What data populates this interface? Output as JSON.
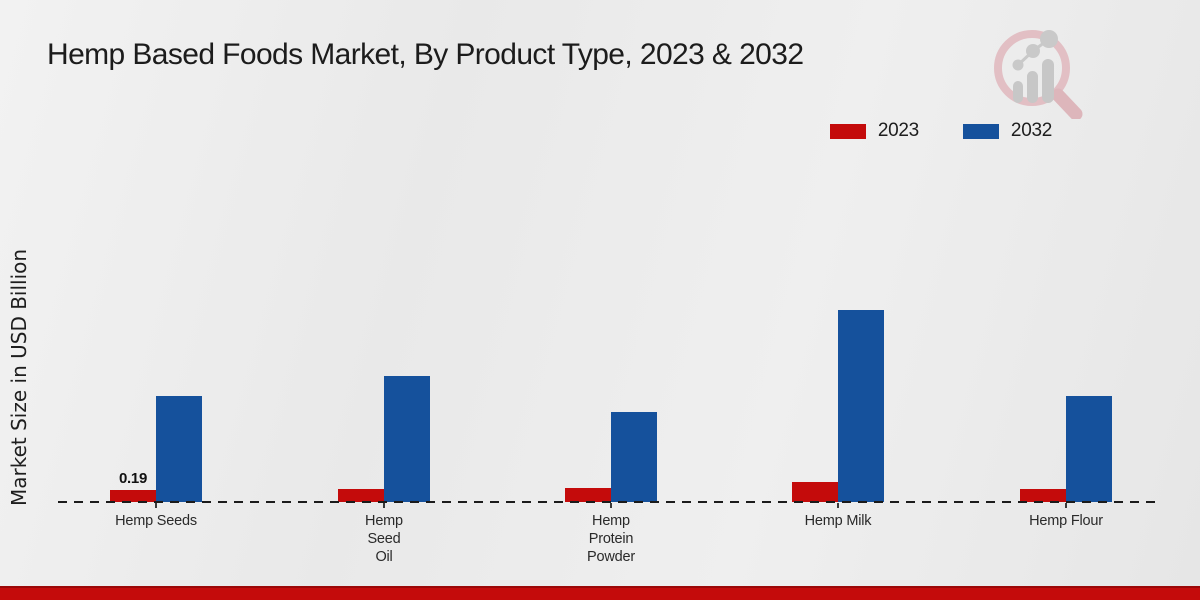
{
  "chart_data": {
    "type": "bar",
    "title": "Hemp Based Foods Market, By Product Type, 2023 & 2032",
    "ylabel": "Market Size in USD Billion",
    "xlabel": "",
    "categories": [
      "Hemp Seeds",
      "Hemp Seed Oil",
      "Hemp Protein Powder",
      "Hemp Milk",
      "Hemp Flour"
    ],
    "category_label_lines": [
      [
        "Hemp Seeds"
      ],
      [
        "Hemp",
        "Seed",
        "Oil"
      ],
      [
        "Hemp",
        "Protein",
        "Powder"
      ],
      [
        "Hemp Milk"
      ],
      [
        "Hemp Flour"
      ]
    ],
    "series": [
      {
        "name": "2023",
        "color": "#c40b0b",
        "values": [
          0.19,
          0.21,
          0.22,
          0.31,
          0.21
        ]
      },
      {
        "name": "2032",
        "color": "#15519c",
        "values": [
          1.68,
          2.0,
          1.42,
          3.04,
          1.68
        ]
      }
    ],
    "shown_value_labels": [
      {
        "series": "2023",
        "category": "Hemp Seeds",
        "text": "0.19"
      }
    ],
    "ylim": [
      0,
      3.2
    ],
    "grid": false,
    "legend_position": "top-right",
    "x_axis_style": "dashed-line",
    "y_axis_ticks_visible": false
  },
  "branding": {
    "logo_icon": "magnifier-bar-chart-watermark",
    "footer_band_color": "#c40b0b",
    "logo_circle_color": "#e2bfc4",
    "logo_bars_color": "#c7c7c7"
  }
}
